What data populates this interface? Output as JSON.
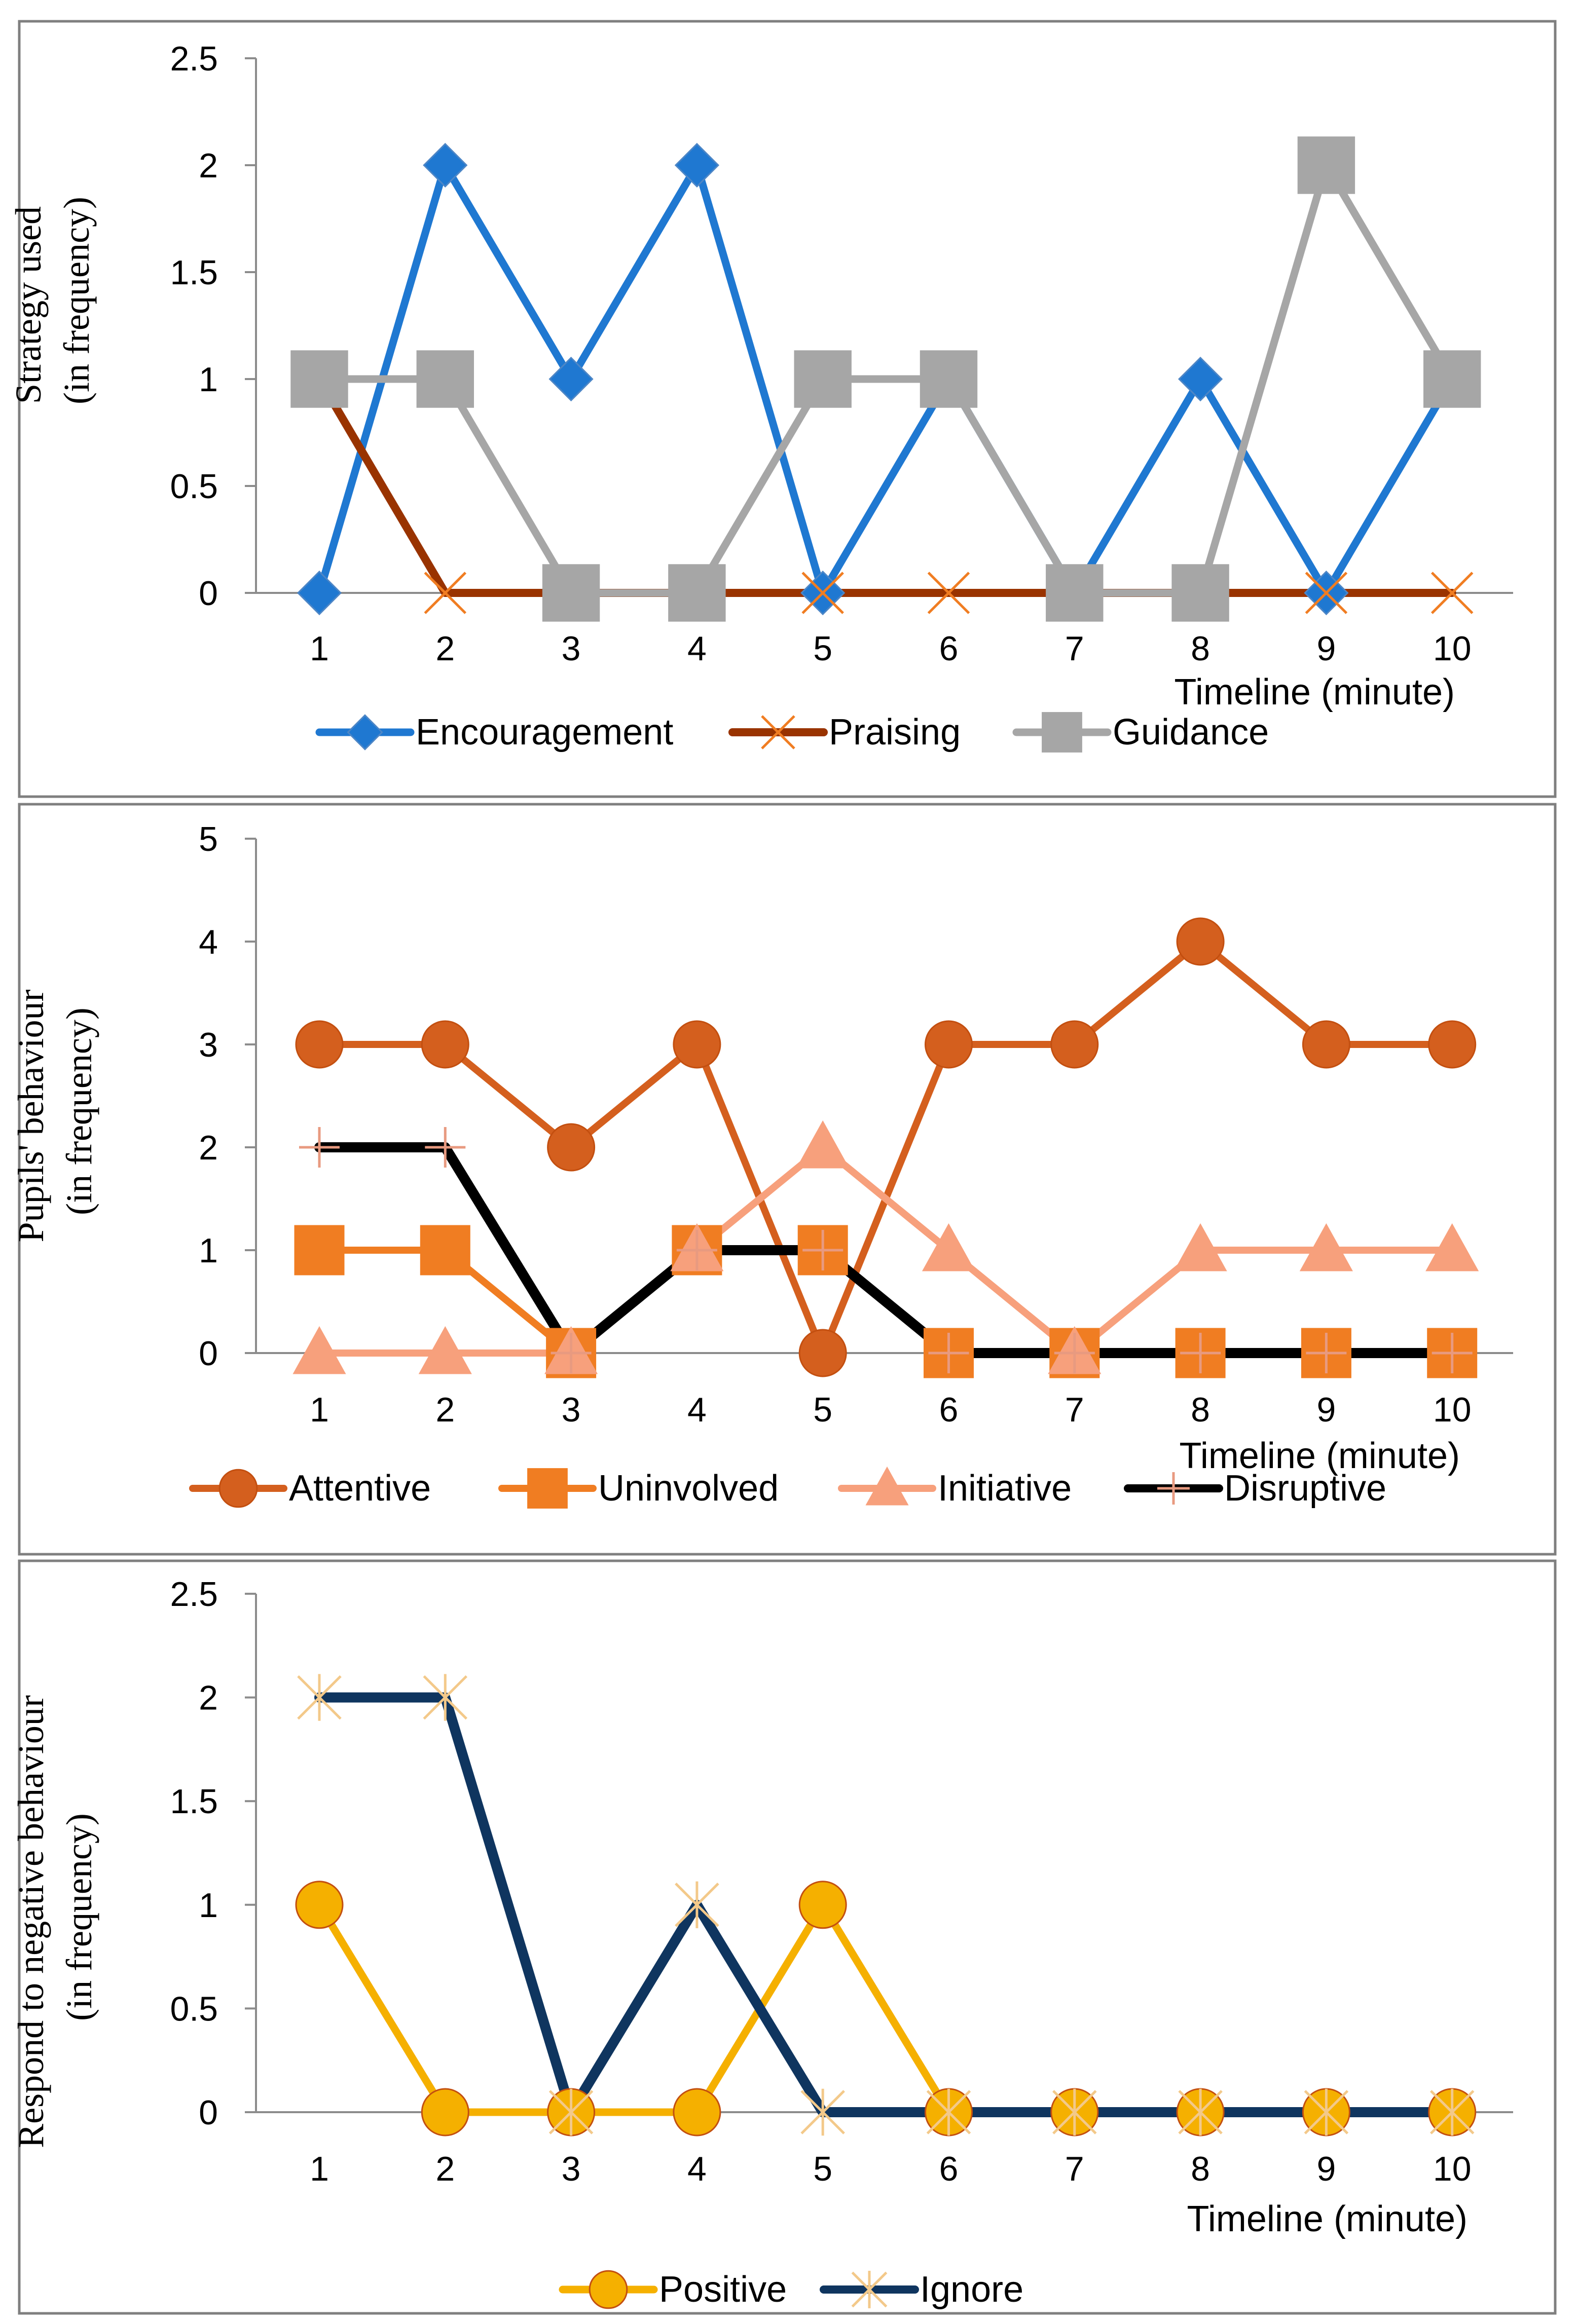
{
  "chart_data": [
    {
      "type": "line",
      "ylabel_lines": [
        "Strategy used",
        "(in frequency)"
      ],
      "xlabel": "Timeline (minute)",
      "ylim": [
        0,
        2.5
      ],
      "yticks": [
        "0",
        "0.5",
        "1",
        "1.5",
        "2",
        "2.5"
      ],
      "ytick_values": [
        0,
        0.5,
        1,
        1.5,
        2,
        2.5
      ],
      "categories": [
        "1",
        "2",
        "3",
        "4",
        "5",
        "6",
        "7",
        "8",
        "9",
        "10"
      ],
      "series": [
        {
          "name": "Encouragement",
          "color": "#1f78d1",
          "marker": "diamond",
          "values": [
            0,
            2,
            1,
            2,
            0,
            1,
            0,
            1,
            0,
            1
          ]
        },
        {
          "name": "Praising",
          "color": "#993300",
          "marker": "x",
          "values": [
            1,
            0,
            0,
            0,
            0,
            0,
            0,
            0,
            0,
            0
          ]
        },
        {
          "name": "Guidance",
          "color": "#a6a6a6",
          "marker": "square",
          "values": [
            1,
            1,
            0,
            0,
            1,
            1,
            0,
            0,
            2,
            1
          ]
        }
      ]
    },
    {
      "type": "line",
      "ylabel_lines": [
        "Pupils' behaviour",
        "(in frequency)"
      ],
      "xlabel": "Timeline (minute)",
      "ylim": [
        0,
        5
      ],
      "yticks": [
        "0",
        "1",
        "2",
        "3",
        "4",
        "5"
      ],
      "ytick_values": [
        0,
        1,
        2,
        3,
        4,
        5
      ],
      "categories": [
        "1",
        "2",
        "3",
        "4",
        "5",
        "6",
        "7",
        "8",
        "9",
        "10"
      ],
      "series": [
        {
          "name": "Attentive",
          "color": "#d45f1e",
          "marker": "circle",
          "values": [
            3,
            3,
            2,
            3,
            0,
            3,
            3,
            4,
            3,
            3
          ]
        },
        {
          "name": "Uninvolved",
          "color": "#f07d22",
          "marker": "square",
          "values": [
            1,
            1,
            0,
            1,
            1,
            0,
            0,
            0,
            0,
            0
          ]
        },
        {
          "name": "Initiative",
          "color": "#f7a07c",
          "marker": "triangle",
          "values": [
            0,
            0,
            0,
            1,
            2,
            1,
            0,
            1,
            1,
            1
          ]
        },
        {
          "name": "Disruptive",
          "color": "#000000",
          "marker": "plus",
          "values": [
            2,
            2,
            0,
            1,
            1,
            0,
            0,
            0,
            0,
            0
          ]
        }
      ]
    },
    {
      "type": "line",
      "ylabel_lines": [
        "Respond to negative behaviour",
        "(in frequency)"
      ],
      "xlabel": "Timeline (minute)",
      "ylim": [
        0,
        2.5
      ],
      "yticks": [
        "0",
        "0.5",
        "1",
        "1.5",
        "2",
        "2.5"
      ],
      "ytick_values": [
        0,
        0.5,
        1,
        1.5,
        2,
        2.5
      ],
      "categories": [
        "1",
        "2",
        "3",
        "4",
        "5",
        "6",
        "7",
        "8",
        "9",
        "10"
      ],
      "series": [
        {
          "name": "Positive",
          "color": "#f5b000",
          "marker": "circle",
          "values": [
            1,
            0,
            0,
            0,
            1,
            0,
            0,
            0,
            0,
            0
          ]
        },
        {
          "name": "Ignore",
          "color": "#0f355f",
          "marker": "star",
          "values": [
            2,
            2,
            0,
            1,
            0,
            0,
            0,
            0,
            0,
            0
          ]
        }
      ]
    }
  ]
}
